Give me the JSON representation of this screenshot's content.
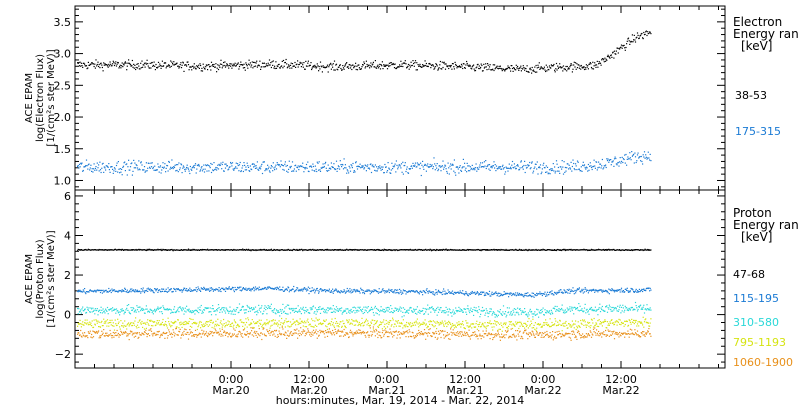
{
  "colors": {
    "black": "#000000",
    "blue": "#1a7ad4",
    "cyan": "#2ad8d8",
    "yellow": "#d6e412",
    "orange": "#e8901a",
    "frame": "#000000"
  },
  "xaxis": {
    "label": "hours:minutes, Mar. 19, 2014 - Mar. 22, 2014",
    "range_hours": [
      0,
      100
    ],
    "ticks": [
      {
        "hours": 24,
        "time": "0:00",
        "date": "Mar.20"
      },
      {
        "hours": 36,
        "time": "12:00",
        "date": "Mar.20"
      },
      {
        "hours": 48,
        "time": "0:00",
        "date": "Mar.21"
      },
      {
        "hours": 60,
        "time": "12:00",
        "date": "Mar.21"
      },
      {
        "hours": 72,
        "time": "0:00",
        "date": "Mar.22"
      },
      {
        "hours": 84,
        "time": "12:00",
        "date": "Mar.22"
      }
    ]
  },
  "chart_data": [
    {
      "type": "scatter",
      "panel": "electron",
      "ylabel_lines": [
        "ACE EPAM",
        "log(Electron Flux)",
        "[1/(cm²s ster MeV)]"
      ],
      "ylim": [
        0.85,
        3.75
      ],
      "yticks": [
        1.0,
        1.5,
        2.0,
        2.5,
        3.0,
        3.5
      ],
      "yticklabels": [
        "1.0",
        "1.5",
        "2.0",
        "2.5",
        "3.0",
        "3.5"
      ],
      "legend_title": [
        "Electron",
        "Energy ran",
        "[keV]"
      ],
      "series": [
        {
          "name": "38-53",
          "color": "#000000",
          "data_end_hours": 88.5,
          "profile": [
            [
              0,
              2.83
            ],
            [
              10,
              2.83
            ],
            [
              20,
              2.81
            ],
            [
              30,
              2.84
            ],
            [
              40,
              2.8
            ],
            [
              50,
              2.83
            ],
            [
              60,
              2.8
            ],
            [
              68,
              2.76
            ],
            [
              76,
              2.8
            ],
            [
              80,
              2.82
            ],
            [
              82,
              2.95
            ],
            [
              84,
              3.1
            ],
            [
              86,
              3.25
            ],
            [
              88.5,
              3.35
            ]
          ]
        },
        {
          "name": "175-315",
          "color": "#1a7ad4",
          "data_end_hours": 88.5,
          "profile": [
            [
              0,
              1.22
            ],
            [
              20,
              1.22
            ],
            [
              40,
              1.22
            ],
            [
              60,
              1.22
            ],
            [
              76,
              1.22
            ],
            [
              82,
              1.28
            ],
            [
              86,
              1.38
            ],
            [
              88.5,
              1.4
            ]
          ]
        }
      ]
    },
    {
      "type": "scatter",
      "panel": "proton",
      "ylabel_lines": [
        "ACE EPAM",
        "log(Proton Flux)",
        "[1/(cm²s ster MeV)]"
      ],
      "ylim": [
        -2.7,
        6.3
      ],
      "yticks": [
        -2,
        0,
        2,
        4,
        6
      ],
      "yticklabels": [
        "−2",
        "0",
        "2",
        "4",
        "6"
      ],
      "legend_title": [
        "Proton",
        "Energy ran",
        "[keV]"
      ],
      "series": [
        {
          "name": "47-68",
          "color": "#000000",
          "data_end_hours": 88.5,
          "profile": [
            [
              0,
              3.3
            ],
            [
              88.5,
              3.3
            ]
          ]
        },
        {
          "name": "115-195",
          "color": "#1a7ad4",
          "data_end_hours": 88.5,
          "profile": [
            [
              0,
              1.2
            ],
            [
              30,
              1.35
            ],
            [
              40,
              1.22
            ],
            [
              50,
              1.2
            ],
            [
              60,
              1.12
            ],
            [
              70,
              1.02
            ],
            [
              76,
              1.22
            ],
            [
              88.5,
              1.28
            ]
          ]
        },
        {
          "name": "310-580",
          "color": "#2ad8d8",
          "data_end_hours": 88.5,
          "profile": [
            [
              0,
              0.25
            ],
            [
              40,
              0.28
            ],
            [
              60,
              0.22
            ],
            [
              70,
              0.15
            ],
            [
              76,
              0.3
            ],
            [
              88.5,
              0.32
            ]
          ]
        },
        {
          "name": "795-1193",
          "color": "#d6e412",
          "data_end_hours": 88.5,
          "profile": [
            [
              0,
              -0.45
            ],
            [
              40,
              -0.4
            ],
            [
              70,
              -0.5
            ],
            [
              88.5,
              -0.35
            ]
          ]
        },
        {
          "name": "1060-1900",
          "color": "#e8901a",
          "data_end_hours": 88.5,
          "profile": [
            [
              0,
              -0.95
            ],
            [
              40,
              -0.9
            ],
            [
              70,
              -1.0
            ],
            [
              88.5,
              -0.9
            ]
          ]
        }
      ]
    }
  ]
}
